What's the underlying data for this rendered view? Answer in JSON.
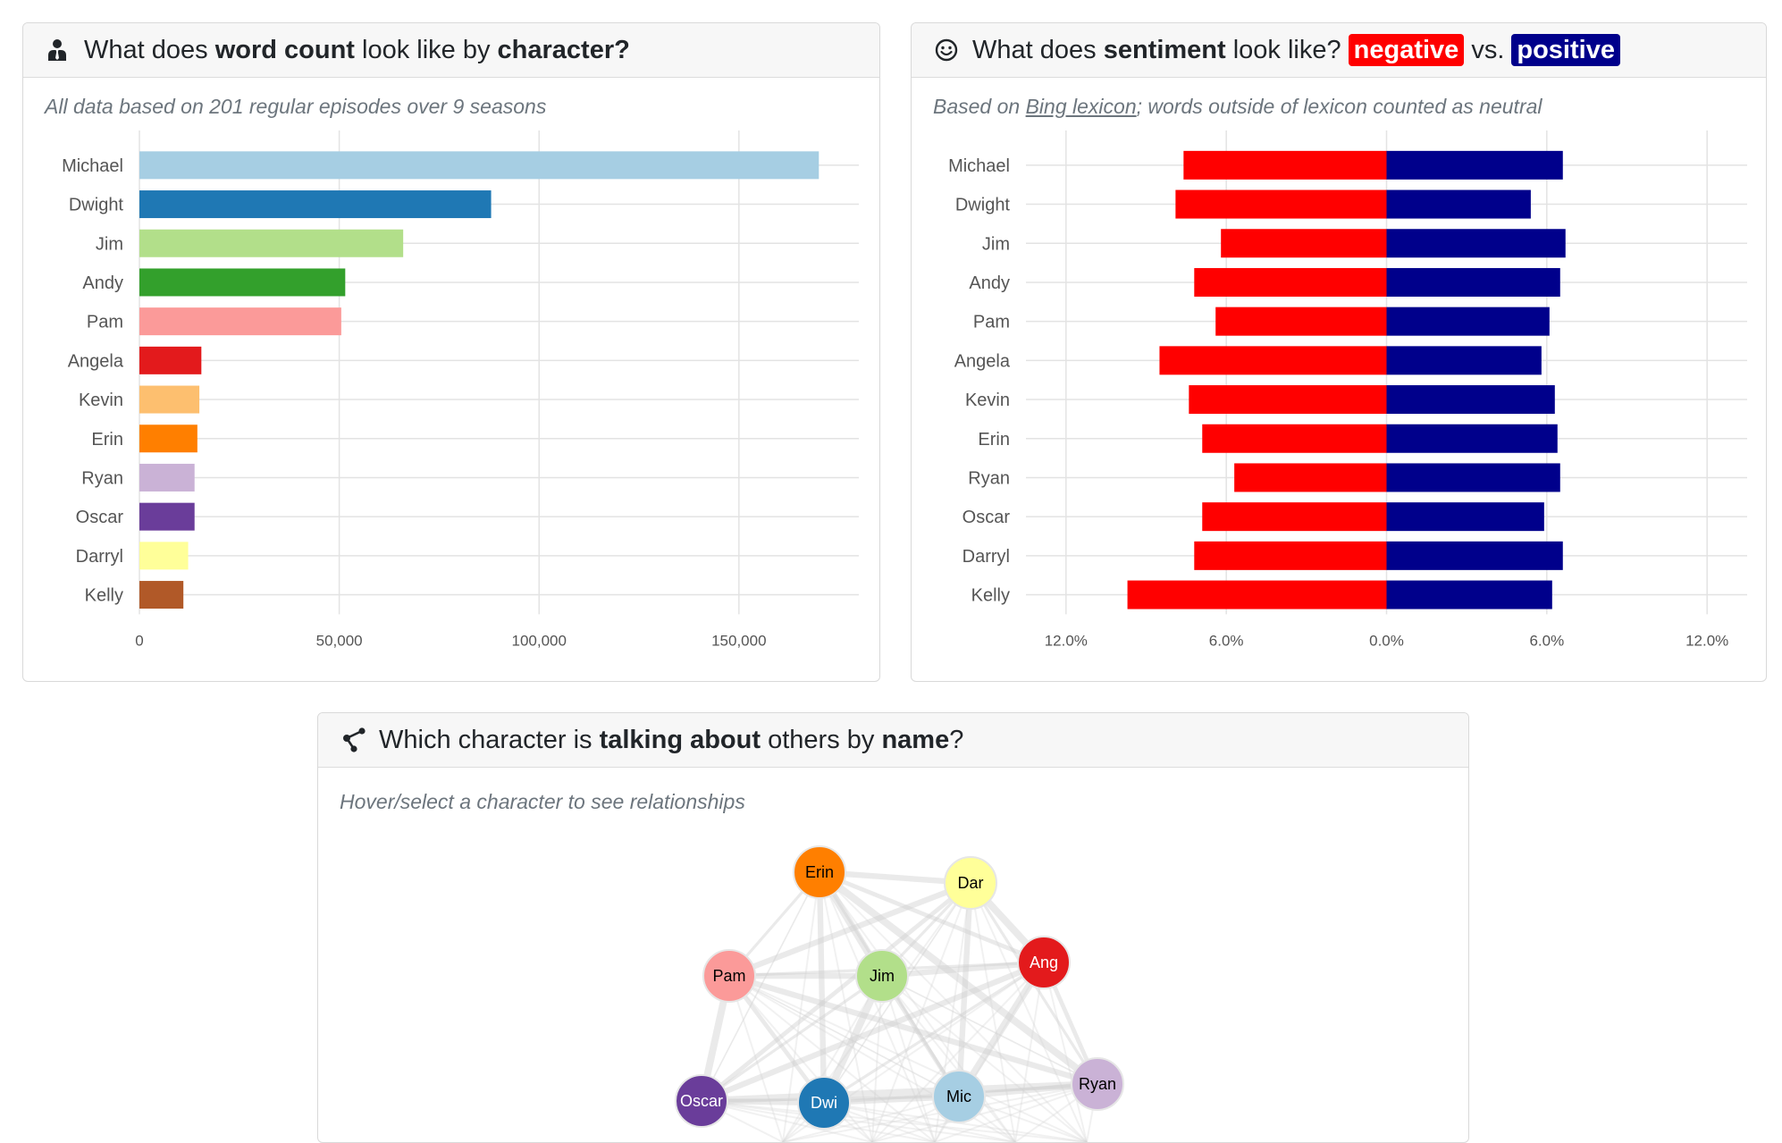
{
  "word_count_card": {
    "title_parts": [
      "What does ",
      "word count",
      " look like by ",
      "character?"
    ],
    "subtitle": "All data based on 201 regular episodes over 9 seasons"
  },
  "sentiment_card": {
    "title_parts": [
      "What does ",
      "sentiment",
      " look like?"
    ],
    "negative_label": "negative",
    "vs_label": "vs.",
    "positive_label": "positive",
    "subtitle_before": "Based on ",
    "subtitle_link": "Bing lexicon",
    "subtitle_after": "; words outside of lexicon counted as neutral"
  },
  "network_card": {
    "title_parts": [
      "Which character is ",
      "talking about",
      " others by ",
      "name",
      "?"
    ],
    "subtitle": "Hover/select a character to see relationships",
    "nodes": [
      {
        "label": "Erin",
        "color": "#ff7f00",
        "text_color": "#000000"
      },
      {
        "label": "Dar",
        "color": "#ffff99",
        "text_color": "#000000"
      },
      {
        "label": "Pam",
        "color": "#fb9a99",
        "text_color": "#000000"
      },
      {
        "label": "Jim",
        "color": "#b2df8a",
        "text_color": "#000000"
      },
      {
        "label": "Ang",
        "color": "#e31a1c",
        "text_color": "#ffffff"
      },
      {
        "label": "Oscar",
        "color": "#6a3d9a",
        "text_color": "#ffffff"
      },
      {
        "label": "Dwi",
        "color": "#1f78b4",
        "text_color": "#ffffff"
      },
      {
        "label": "Mic",
        "color": "#a6cee3",
        "text_color": "#000000"
      },
      {
        "label": "Ryan",
        "color": "#cab2d6",
        "text_color": "#000000"
      }
    ]
  },
  "chart_data": [
    {
      "type": "bar",
      "orientation": "horizontal",
      "categories": [
        "Michael",
        "Dwight",
        "Jim",
        "Andy",
        "Pam",
        "Angela",
        "Kevin",
        "Erin",
        "Ryan",
        "Oscar",
        "Darryl",
        "Kelly"
      ],
      "values": [
        170000,
        88000,
        66000,
        51500,
        50500,
        15500,
        15000,
        14500,
        13800,
        13800,
        12200,
        11000
      ],
      "colors": [
        "#a6cee3",
        "#1f78b4",
        "#b2df8a",
        "#33a02c",
        "#fb9a99",
        "#e31a1c",
        "#fdbf6f",
        "#ff7f00",
        "#cab2d6",
        "#6a3d9a",
        "#ffff99",
        "#b15928"
      ],
      "xlim": [
        0,
        180000
      ],
      "xticks": [
        0,
        50000,
        100000,
        150000
      ],
      "xtick_labels": [
        "0",
        "50,000",
        "100,000",
        "150,000"
      ],
      "grid": true
    },
    {
      "type": "bar",
      "orientation": "horizontal",
      "diverging": true,
      "categories": [
        "Michael",
        "Dwight",
        "Jim",
        "Andy",
        "Pam",
        "Angela",
        "Kevin",
        "Erin",
        "Ryan",
        "Oscar",
        "Darryl",
        "Kelly"
      ],
      "series": [
        {
          "name": "negative",
          "color": "#ff0000",
          "values": [
            7.6,
            7.9,
            6.2,
            7.2,
            6.4,
            8.5,
            7.4,
            6.9,
            5.7,
            6.9,
            7.2,
            9.7
          ]
        },
        {
          "name": "positive",
          "color": "#00008b",
          "values": [
            6.6,
            5.4,
            6.7,
            6.5,
            6.1,
            5.8,
            6.3,
            6.4,
            6.5,
            5.9,
            6.6,
            6.2
          ]
        }
      ],
      "xlim": [
        -13.5,
        13.5
      ],
      "xticks": [
        -12,
        -6,
        0,
        6,
        12
      ],
      "xtick_labels": [
        "12.0%",
        "6.0%",
        "0.0%",
        "6.0%",
        "12.0%"
      ],
      "grid": true
    }
  ]
}
